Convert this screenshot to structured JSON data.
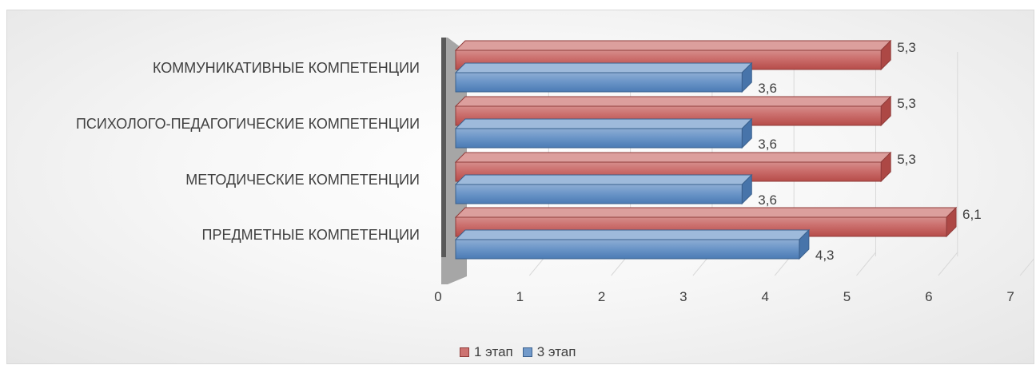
{
  "chart_data": {
    "type": "bar",
    "orientation": "horizontal",
    "style": "3d-clustered",
    "categories": [
      "КОММУНИКАТИВНЫЕ КОМПЕТЕНЦИИ",
      "ПСИХОЛОГО-ПЕДАГОГИЧЕСКИЕ КОМПЕТЕНЦИИ",
      "МЕТОДИЧЕСКИЕ КОМПЕТЕНЦИИ",
      "ПРЕДМЕТНЫЕ КОМПЕТЕНЦИИ"
    ],
    "series": [
      {
        "name": "1 этап",
        "values": [
          5.3,
          5.3,
          5.3,
          6.1
        ],
        "labels": [
          "5,3",
          "5,3",
          "5,3",
          "6,1"
        ],
        "color": "#c0504d"
      },
      {
        "name": "3 этап",
        "values": [
          3.6,
          3.6,
          3.6,
          4.3
        ],
        "labels": [
          "3,6",
          "3,6",
          "3,6",
          "4,3"
        ],
        "color": "#4f81bd"
      }
    ],
    "xlim": [
      0,
      7
    ],
    "ticks": [
      "0",
      "1",
      "2",
      "3",
      "4",
      "5",
      "6",
      "7"
    ],
    "grid": true,
    "legend": "bottom"
  }
}
